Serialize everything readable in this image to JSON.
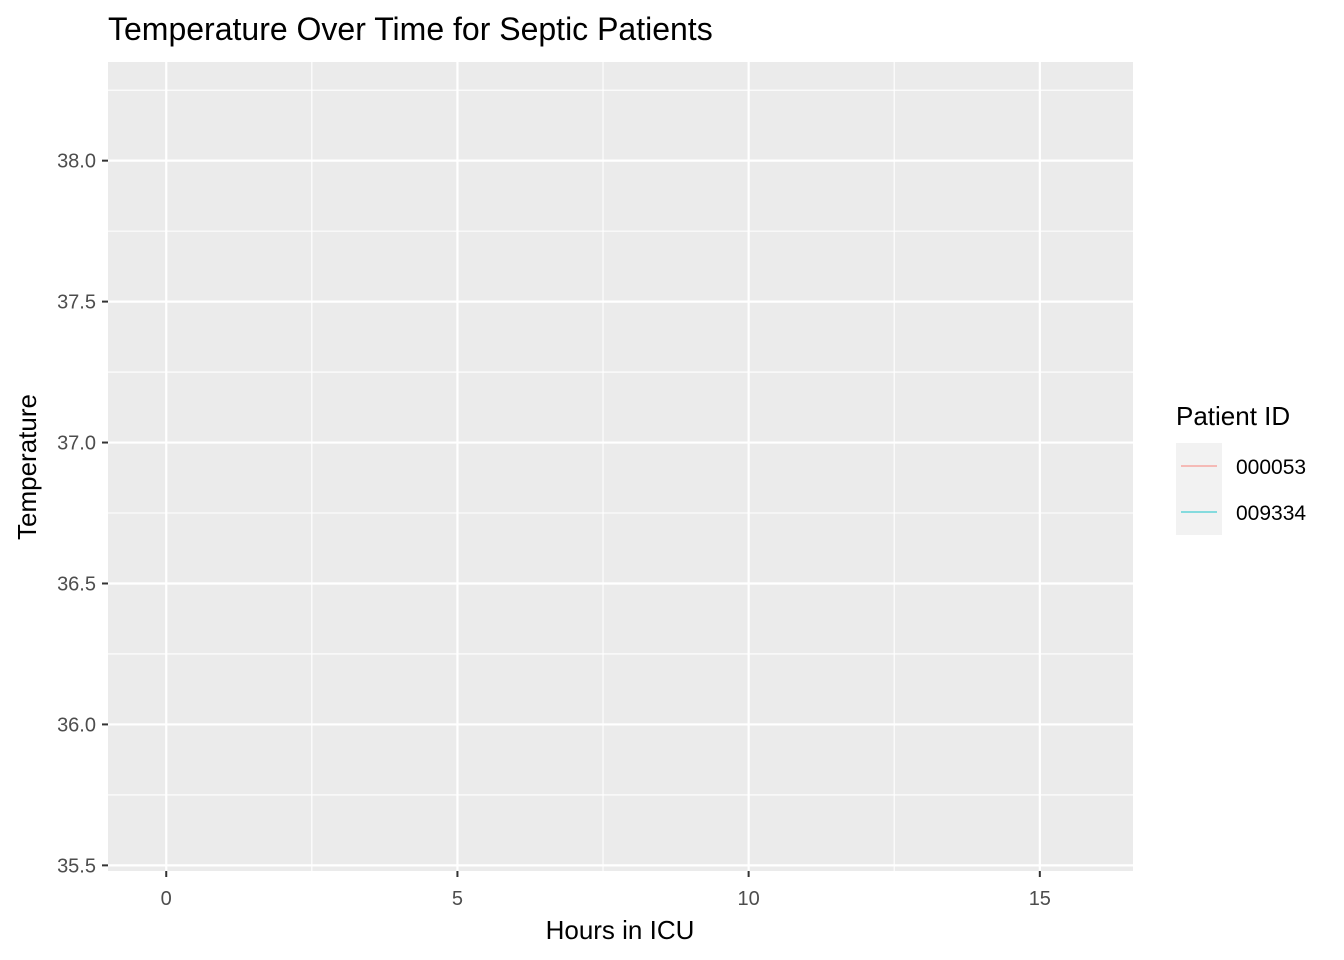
{
  "chart_data": {
    "type": "line",
    "title": "Temperature Over Time for Septic Patients",
    "xlabel": "Hours in ICU",
    "ylabel": "Temperature",
    "xlim": [
      -1.0,
      16.6
    ],
    "ylim": [
      35.48,
      38.35
    ],
    "x_ticks": [
      0,
      5,
      10,
      15
    ],
    "x_tick_labels": [
      "0",
      "5",
      "10",
      "15"
    ],
    "x_minor_ticks": [
      2.5,
      7.5,
      12.5
    ],
    "y_ticks": [
      35.5,
      36.0,
      36.5,
      37.0,
      37.5,
      38.0
    ],
    "y_tick_labels": [
      "35.5",
      "36.0",
      "36.5",
      "37.0",
      "37.5",
      "38.0"
    ],
    "y_minor_ticks": [
      35.75,
      36.25,
      36.75,
      37.25,
      37.75,
      38.25
    ],
    "grid": true,
    "legend": {
      "title": "Patient ID",
      "placement": "right"
    },
    "series": [
      {
        "name": "000053",
        "color": "#F8766D",
        "x": [],
        "y": []
      },
      {
        "name": "009334",
        "color": "#00BFC4",
        "x": [],
        "y": []
      }
    ]
  },
  "style": {
    "panel_background": "#EBEBEB",
    "grid_color": "#FFFFFF",
    "legend_key_background": "#F2F2F2"
  }
}
